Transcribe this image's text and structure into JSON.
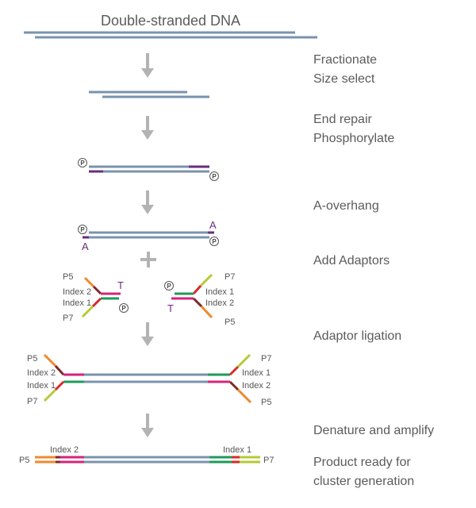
{
  "title": "Double-stranded DNA",
  "steps": {
    "fractionate": "Fractionate",
    "size_select": "Size select",
    "end_repair": "End repair",
    "phosphorylate": "Phosphorylate",
    "a_overhang": "A-overhang",
    "add_adaptors": "Add Adaptors",
    "adaptor_ligation": "Adaptor ligation",
    "denature_amplify": "Denature and amplify",
    "product_line1": "Product ready for",
    "product_line2": "cluster generation"
  },
  "labels": {
    "p5": "P5",
    "p7": "P7",
    "index1": "Index 1",
    "index2": "Index 2",
    "a": "A",
    "t": "T",
    "phosphate": "P"
  },
  "colors": {
    "dna": "#7a93ad",
    "purple": "#6a2c80",
    "orange": "#f0892d",
    "lime": "#b5c936",
    "magenta": "#d6237a",
    "green": "#1e9a5a",
    "red": "#d92a2a",
    "maroon": "#7d2a2a",
    "arrow": "#b3b3b3"
  }
}
